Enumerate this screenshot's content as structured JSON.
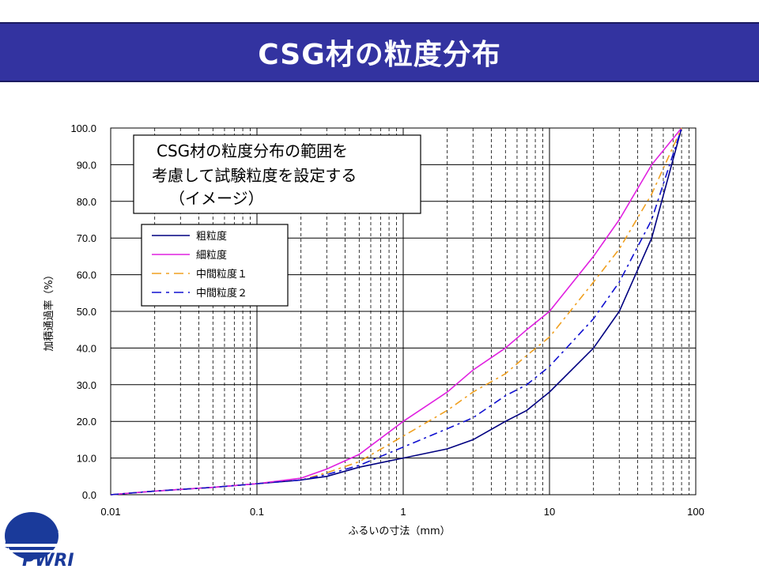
{
  "slide": {
    "title": "CSG材の粒度分布"
  },
  "logo": {
    "text": "PWRI",
    "color": "#1a3a9a"
  },
  "chart_data": {
    "type": "line",
    "x_scale": "log",
    "xlim": [
      0.01,
      100
    ],
    "ylim": [
      0,
      100
    ],
    "x_ticks": [
      "0.01",
      "0.1",
      "1",
      "10",
      "100"
    ],
    "y_ticks": [
      "0.0",
      "10.0",
      "20.0",
      "30.0",
      "40.0",
      "50.0",
      "60.0",
      "70.0",
      "80.0",
      "90.0",
      "100.0"
    ],
    "xlabel": "ふるいの寸法（mm）",
    "ylabel": "加積通過率（%）",
    "grid": "dashed minor vertical, solid major",
    "annotation": [
      "CSG材の粒度分布の範囲を",
      "考慮して試験粒度を設定する",
      "（イメージ）"
    ],
    "legend_position": "upper-left",
    "series": [
      {
        "name": "粗粒度",
        "color": "#000080",
        "dash": "solid",
        "x": [
          0.01,
          0.02,
          0.05,
          0.1,
          0.2,
          0.3,
          0.5,
          1,
          2,
          3,
          5,
          7,
          10,
          20,
          30,
          50,
          80
        ],
        "y": [
          0,
          1,
          2,
          3,
          4,
          5,
          7.5,
          10,
          12.5,
          15,
          20,
          23,
          28,
          40,
          50,
          70,
          100
        ]
      },
      {
        "name": "細粒度",
        "color": "#e020e0",
        "dash": "solid",
        "x": [
          0.01,
          0.02,
          0.05,
          0.1,
          0.2,
          0.3,
          0.5,
          1,
          2,
          3,
          5,
          7,
          10,
          20,
          30,
          50,
          80
        ],
        "y": [
          0,
          1,
          2,
          3,
          4.5,
          7,
          11,
          20,
          28,
          34,
          40,
          45,
          50,
          65,
          75,
          90,
          100
        ]
      },
      {
        "name": "中間粒度１",
        "color": "#f0a020",
        "dash": "dashdot",
        "x": [
          0.01,
          0.02,
          0.05,
          0.1,
          0.2,
          0.3,
          0.5,
          1,
          2,
          3,
          5,
          7,
          10,
          20,
          30,
          50,
          80
        ],
        "y": [
          0,
          1,
          2,
          3,
          4,
          6,
          9,
          16,
          23,
          28,
          33,
          38,
          43,
          58,
          67,
          82,
          100
        ]
      },
      {
        "name": "中間粒度２",
        "color": "#1010d0",
        "dash": "dashdot",
        "x": [
          0.01,
          0.02,
          0.05,
          0.1,
          0.2,
          0.3,
          0.5,
          1,
          2,
          3,
          5,
          7,
          10,
          20,
          30,
          50,
          80
        ],
        "y": [
          0,
          1,
          2,
          3,
          4,
          5.5,
          8,
          13,
          18,
          21,
          27,
          30,
          35,
          48,
          58,
          75,
          100
        ]
      }
    ]
  }
}
